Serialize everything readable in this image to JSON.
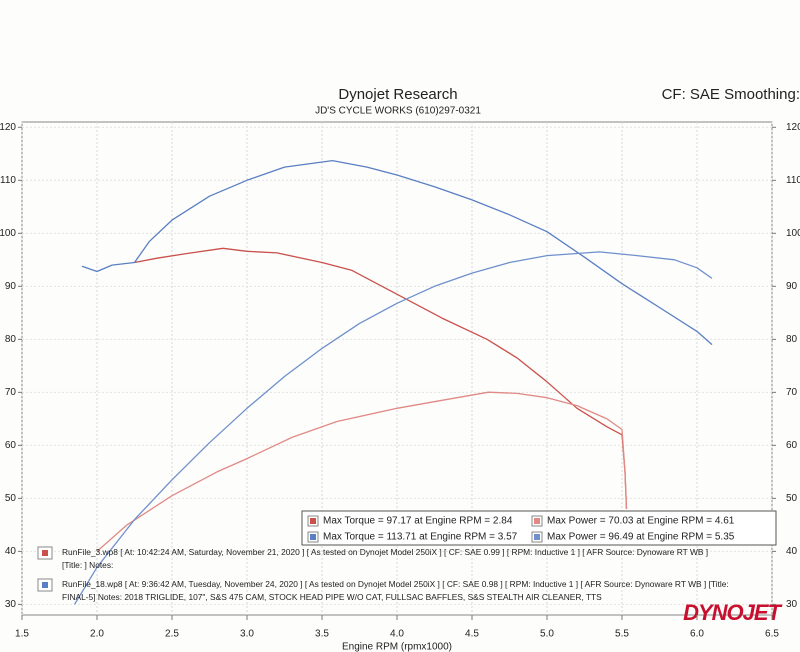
{
  "chart_data": {
    "type": "line",
    "title": "Dynojet Research",
    "subtitle": "JD'S CYCLE WORKS  (610)297-0321",
    "header_right": "CF: SAE Smoothing:",
    "x_label": "Engine RPM (rpmx1000)",
    "brand": "DYNOJET",
    "xlim": [
      1.5,
      6.5
    ],
    "xticks": [
      1.5,
      {
        "value": 2,
        "label": "2.0"
      },
      2.5,
      {
        "value": 3,
        "label": "3.0"
      },
      3.5,
      {
        "value": 4,
        "label": "4.0"
      },
      4.5,
      {
        "value": 5,
        "label": "5.0"
      },
      5.5,
      {
        "value": 6,
        "label": "6.0"
      },
      6.5
    ],
    "ylim": [
      28,
      121
    ],
    "yticks": [
      30,
      40,
      50,
      60,
      70,
      80,
      90,
      100,
      110,
      120
    ],
    "grid": true,
    "series": [
      {
        "name": "Max Torque = 97.17 at Engine RPM = 2.84",
        "color": "#c9504b",
        "x": [
          2.25,
          2.4,
          2.6,
          2.84,
          3.0,
          3.2,
          3.5,
          3.7,
          3.9,
          4.1,
          4.3,
          4.6,
          4.8,
          5.0,
          5.2,
          5.4,
          5.5,
          5.52,
          5.53
        ],
        "values": [
          94.5,
          95.3,
          96.2,
          97.17,
          96.6,
          96.3,
          94.5,
          93,
          90,
          87,
          84,
          80,
          76.5,
          72,
          67,
          63.5,
          62,
          55,
          48
        ]
      },
      {
        "name": "Max Power = 70.03 at Engine RPM = 4.61",
        "color": "#e08a85",
        "x": [
          2.0,
          2.2,
          2.5,
          2.8,
          3.0,
          3.3,
          3.6,
          4.0,
          4.3,
          4.61,
          4.8,
          5.0,
          5.2,
          5.4,
          5.5,
          5.52,
          5.53
        ],
        "values": [
          40,
          45,
          50.5,
          55,
          57.5,
          61.5,
          64.5,
          67,
          68.5,
          70.03,
          69.8,
          69,
          67.5,
          65,
          63,
          55,
          48
        ]
      },
      {
        "name": "Max Torque = 113.71 at Engine RPM = 3.57",
        "color": "#5a7fc2",
        "x": [
          1.9,
          2.0,
          2.1,
          2.25,
          2.35,
          2.5,
          2.75,
          3.0,
          3.25,
          3.57,
          3.8,
          4.0,
          4.25,
          4.5,
          4.75,
          5.0,
          5.25,
          5.5,
          5.75,
          6.0,
          6.1
        ],
        "values": [
          93.8,
          92.8,
          94,
          94.5,
          98.5,
          102.5,
          107,
          110,
          112.5,
          113.71,
          112.5,
          111,
          108.8,
          106.3,
          103.5,
          100.3,
          95.5,
          90.5,
          86,
          81.5,
          79
        ]
      },
      {
        "name": "Max Power = 96.49 at Engine RPM = 5.35",
        "color": "#6f90cc",
        "x": [
          1.85,
          2.0,
          2.25,
          2.5,
          2.75,
          3.0,
          3.25,
          3.5,
          3.75,
          4.0,
          4.25,
          4.5,
          4.75,
          5.0,
          5.35,
          5.6,
          5.85,
          6.0,
          6.1
        ],
        "values": [
          30,
          37,
          46,
          53.5,
          60.5,
          67,
          73,
          78.3,
          83,
          86.8,
          90,
          92.5,
          94.5,
          95.8,
          96.49,
          95.8,
          95,
          93.5,
          91.5
        ]
      }
    ],
    "runs": [
      {
        "color": "#c9504b",
        "lines": [
          "RunFile_3.wp8 [ At: 10:42:24 AM, Saturday, November 21, 2020 ] [ As tested on Dynojet Model 250iX ] [ CF: SAE 0.99 ] [ RPM: Inductive 1 ] [ AFR Source: Dynoware RT WB ]",
          "[Title: ]  Notes:"
        ]
      },
      {
        "color": "#5a7fc2",
        "lines": [
          "RunFile_18.wp8 [ At: 9:36:42 AM, Tuesday, November 24, 2020 ] [ As tested on Dynojet Model 250iX ] [ CF: SAE 0.98 ] [ RPM: Inductive 1 ] [ AFR Source: Dynoware RT WB ] [Title:",
          "FINAL-5]  Notes: 2018 TRIGLIDE, 107\", S&S 475 CAM, STOCK HEAD PIPE W/O CAT, FULLSAC BAFFLES, S&S STEALTH AIR CLEANER, TTS"
        ]
      }
    ]
  }
}
